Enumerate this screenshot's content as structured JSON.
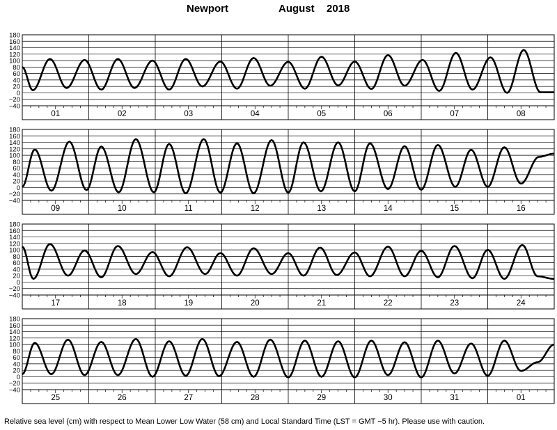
{
  "title": {
    "station": "Newport",
    "month": "August",
    "year": "2018"
  },
  "footer": "Relative sea level (cm) with respect to Mean Lower Low Water (58 cm) and Local Standard Time (LST = GMT −5 hr). Please use with caution.",
  "chart_data": [
    {
      "type": "line",
      "days": [
        "01",
        "02",
        "03",
        "04",
        "05",
        "06",
        "07",
        "08"
      ],
      "ylim": [
        -40,
        180
      ],
      "yticks": [
        180,
        160,
        140,
        120,
        100,
        80,
        60,
        40,
        20,
        0,
        -20,
        -40
      ],
      "grid": true,
      "series": [
        {
          "start_hour": 0,
          "points": [
            [
              0,
              80
            ],
            [
              3.8,
              8
            ],
            [
              10,
              105
            ],
            [
              16,
              15
            ],
            [
              22.5,
              102
            ],
            [
              28.5,
              10
            ],
            [
              34.5,
              105
            ],
            [
              40.5,
              15
            ],
            [
              47,
              100
            ],
            [
              53,
              10
            ],
            [
              59,
              105
            ],
            [
              65,
              20
            ],
            [
              71.5,
              97
            ],
            [
              77.5,
              13
            ],
            [
              83.5,
              108
            ],
            [
              89.5,
              22
            ],
            [
              96,
              96
            ],
            [
              102,
              13
            ],
            [
              108,
              112
            ],
            [
              114,
              23
            ],
            [
              120,
              97
            ],
            [
              126,
              12
            ],
            [
              132,
              117
            ],
            [
              138,
              22
            ],
            [
              144.5,
              102
            ],
            [
              150.5,
              6
            ],
            [
              156.5,
              124
            ],
            [
              162.5,
              10
            ],
            [
              169,
              110
            ],
            [
              175,
              0
            ],
            [
              181,
              133
            ],
            [
              187,
              2
            ],
            [
              192,
              2
            ]
          ]
        }
      ]
    },
    {
      "type": "line",
      "days": [
        "09",
        "10",
        "11",
        "12",
        "13",
        "14",
        "15",
        "16"
      ],
      "ylim": [
        -40,
        180
      ],
      "yticks": [
        180,
        160,
        140,
        120,
        100,
        80,
        60,
        40,
        20,
        0,
        -20,
        -40
      ],
      "grid": true,
      "series": [
        {
          "start_hour": 192,
          "points": [
            [
              0,
              2
            ],
            [
              4.5,
              118
            ],
            [
              10.5,
              -10
            ],
            [
              17,
              142
            ],
            [
              23.2,
              -8
            ],
            [
              28.5,
              127
            ],
            [
              34.8,
              -15
            ],
            [
              41,
              150
            ],
            [
              47.5,
              -15
            ],
            [
              53,
              135
            ],
            [
              59,
              -18
            ],
            [
              65.5,
              150
            ],
            [
              71.5,
              -16
            ],
            [
              77.5,
              137
            ],
            [
              83.5,
              -18
            ],
            [
              90,
              147
            ],
            [
              96,
              -16
            ],
            [
              101.5,
              140
            ],
            [
              107.8,
              -12
            ],
            [
              114,
              140
            ],
            [
              120,
              -12
            ],
            [
              125.5,
              137
            ],
            [
              132,
              -5
            ],
            [
              138,
              128
            ],
            [
              144,
              -7
            ],
            [
              150,
              132
            ],
            [
              156.3,
              2
            ],
            [
              162,
              117
            ],
            [
              168,
              2
            ],
            [
              174,
              125
            ],
            [
              180,
              12
            ],
            [
              186.5,
              95
            ],
            [
              192,
              105
            ]
          ]
        }
      ]
    },
    {
      "type": "line",
      "days": [
        "17",
        "18",
        "19",
        "20",
        "21",
        "22",
        "23",
        "24"
      ],
      "ylim": [
        -40,
        180
      ],
      "yticks": [
        180,
        160,
        140,
        120,
        100,
        80,
        60,
        40,
        20,
        0,
        -20,
        -40
      ],
      "grid": true,
      "series": [
        {
          "start_hour": 384,
          "points": [
            [
              0,
              110
            ],
            [
              4,
              10
            ],
            [
              10,
              118
            ],
            [
              16.5,
              20
            ],
            [
              22.5,
              98
            ],
            [
              28.5,
              15
            ],
            [
              34.5,
              112
            ],
            [
              41,
              25
            ],
            [
              47,
              93
            ],
            [
              53,
              18
            ],
            [
              59.5,
              108
            ],
            [
              66,
              25
            ],
            [
              71.5,
              90
            ],
            [
              77.5,
              20
            ],
            [
              83.5,
              105
            ],
            [
              90,
              25
            ],
            [
              96,
              90
            ],
            [
              101.5,
              20
            ],
            [
              107.5,
              107
            ],
            [
              113.5,
              22
            ],
            [
              120,
              92
            ],
            [
              125.5,
              18
            ],
            [
              132,
              110
            ],
            [
              138,
              18
            ],
            [
              144,
              97
            ],
            [
              150,
              15
            ],
            [
              156,
              112
            ],
            [
              162.5,
              12
            ],
            [
              168,
              100
            ],
            [
              174,
              10
            ],
            [
              180.5,
              115
            ],
            [
              186,
              18
            ],
            [
              192,
              10
            ]
          ]
        }
      ]
    },
    {
      "type": "line",
      "days": [
        "25",
        "26",
        "27",
        "28",
        "29",
        "30",
        "31",
        "01"
      ],
      "ylim": [
        -40,
        180
      ],
      "yticks": [
        180,
        160,
        140,
        120,
        100,
        80,
        60,
        40,
        20,
        0,
        -20,
        -40
      ],
      "grid": true,
      "series": [
        {
          "start_hour": 576,
          "points": [
            [
              0,
              8
            ],
            [
              4.5,
              105
            ],
            [
              10.5,
              8
            ],
            [
              16.5,
              115
            ],
            [
              22.5,
              5
            ],
            [
              28.5,
              108
            ],
            [
              34.5,
              5
            ],
            [
              41,
              117
            ],
            [
              47,
              0
            ],
            [
              53,
              110
            ],
            [
              59,
              3
            ],
            [
              65,
              117
            ],
            [
              71,
              2
            ],
            [
              77.5,
              108
            ],
            [
              83.5,
              0
            ],
            [
              89.5,
              115
            ],
            [
              96,
              -2
            ],
            [
              102,
              112
            ],
            [
              108,
              0
            ],
            [
              114,
              110
            ],
            [
              120,
              -2
            ],
            [
              126,
              112
            ],
            [
              132,
              5
            ],
            [
              138,
              107
            ],
            [
              144,
              -2
            ],
            [
              150,
              112
            ],
            [
              156,
              10
            ],
            [
              162,
              103
            ],
            [
              168,
              3
            ],
            [
              174,
              112
            ],
            [
              180,
              18
            ],
            [
              186,
              45
            ],
            [
              192,
              100
            ]
          ]
        }
      ]
    }
  ]
}
